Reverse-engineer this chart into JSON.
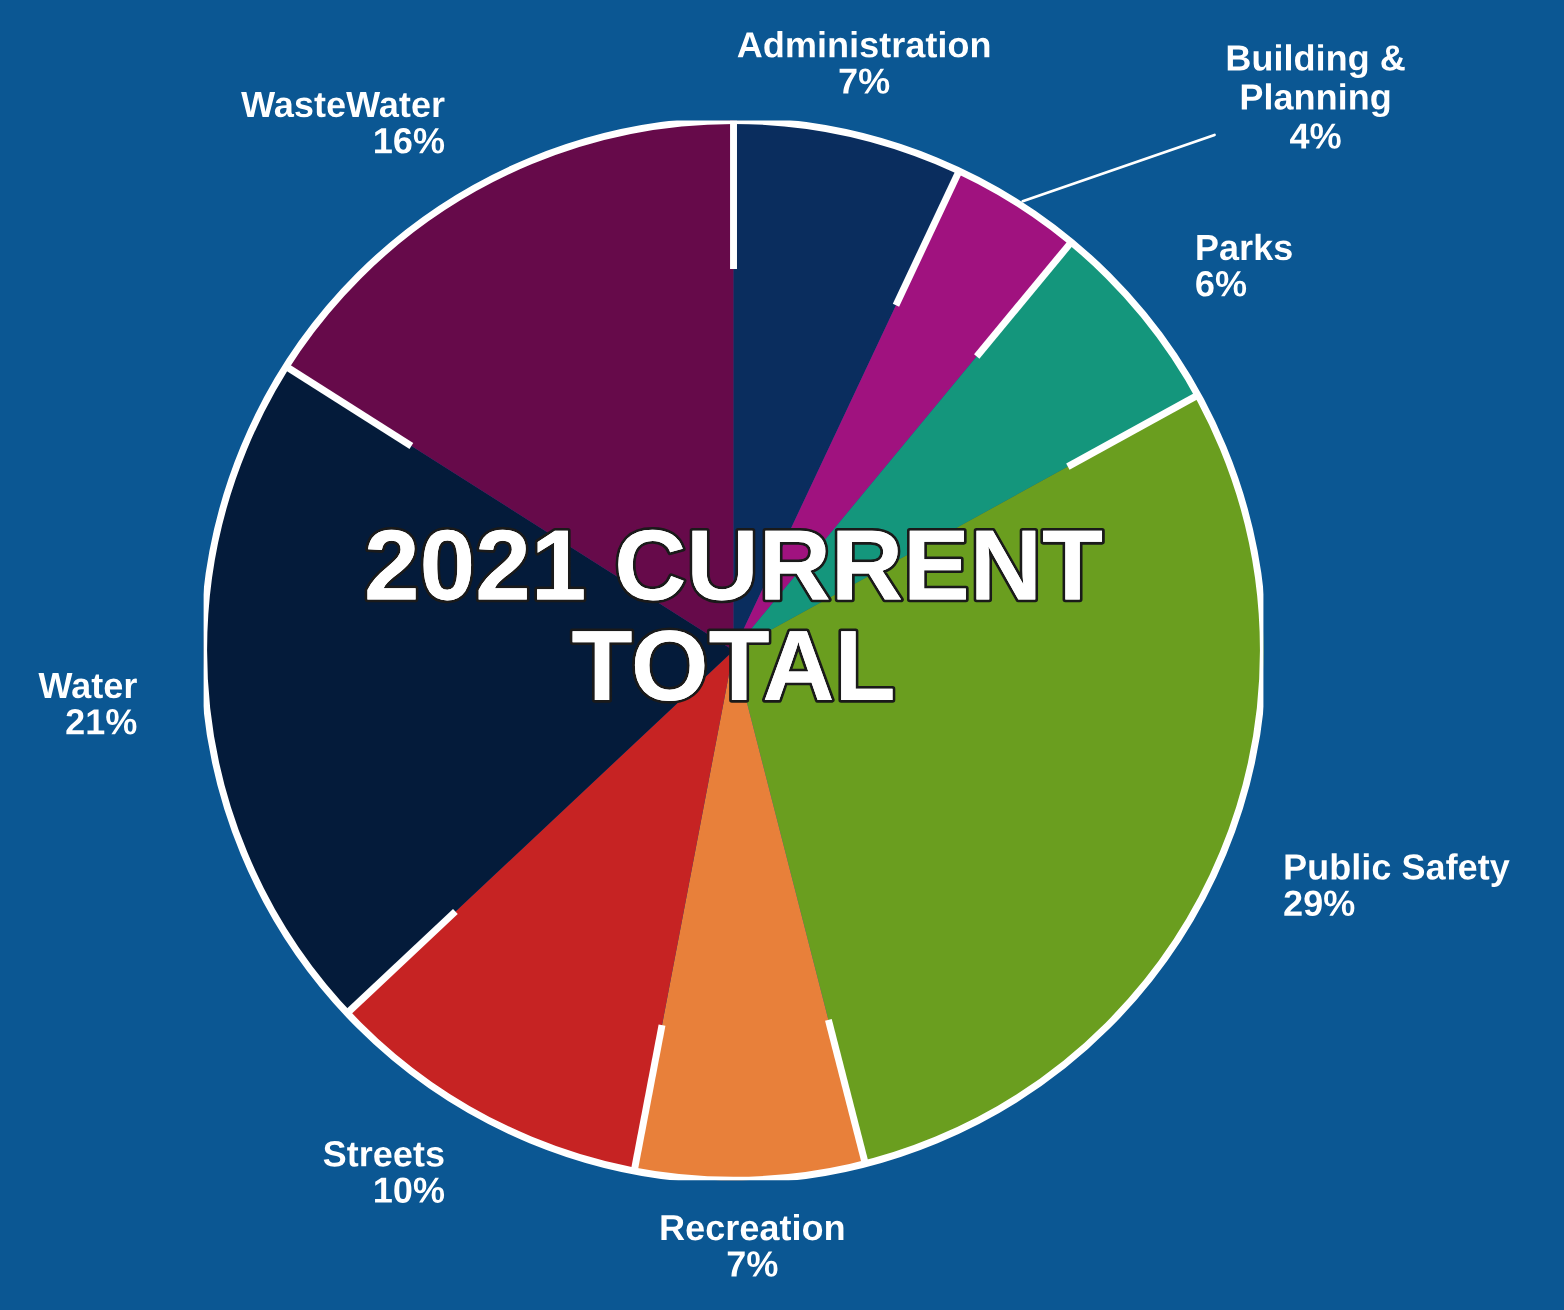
{
  "chart_data": {
    "type": "pie",
    "title": "2021 CURRENT\nTOTAL",
    "categories": [
      "Administration",
      "Building &\nPlanning",
      "Parks",
      "Public Safety",
      "Recreation",
      "Streets",
      "Water",
      "WasteWater"
    ],
    "values": [
      7,
      4,
      6,
      29,
      7,
      10,
      21,
      16
    ],
    "value_labels": [
      "7%",
      "4%",
      "6%",
      "29%",
      "7%",
      "10%",
      "21%",
      "16%"
    ],
    "colors": [
      "#0a2d5e",
      "#a0127f",
      "#14967c",
      "#6a9e1f",
      "#e8803a",
      "#c62323",
      "#041b3a",
      "#660a4a"
    ],
    "legend": false
  }
}
